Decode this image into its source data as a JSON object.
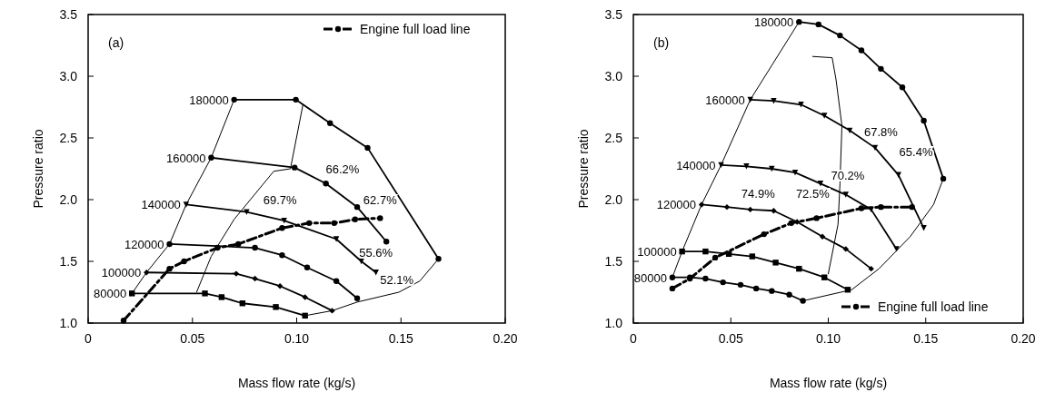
{
  "chart_data": [
    {
      "type": "line",
      "xlabel": "Mass flow rate (kg/s)",
      "ylabel": "Pressure ratio",
      "xlim": [
        0,
        0.2
      ],
      "ylim": [
        1,
        3.5
      ],
      "xticks": [
        0,
        {
          "value": 0.05,
          "label": "0.05"
        },
        {
          "value": 0.1,
          "label": "0.10"
        },
        {
          "value": 0.15,
          "label": "0.15"
        },
        {
          "value": 0.2,
          "label": "0.20"
        }
      ],
      "yticks": [
        {
          "value": 1,
          "label": "1.0"
        },
        {
          "value": 1.5,
          "label": "1.5"
        },
        {
          "value": 2,
          "label": "2.0"
        },
        {
          "value": 2.5,
          "label": "2.5"
        },
        {
          "value": 3,
          "label": "3.0"
        },
        {
          "value": 3.5,
          "label": "3.5"
        }
      ],
      "legend": "top right",
      "grid": false,
      "annotations": [
        "(a)",
        "69.7%",
        "66.2%",
        "62.7%",
        "55.6%",
        "52.1%"
      ],
      "series": [
        {
          "name": "180000",
          "color": "#000000",
          "marker": "circle",
          "x": [
            0.07,
            0.0996,
            0.116,
            0.134,
            0.168
          ],
          "values": [
            2.81,
            2.81,
            2.62,
            2.42,
            1.52
          ]
        },
        {
          "name": "160000",
          "color": "#000000",
          "marker": "circle",
          "x": [
            0.059,
            0.099,
            0.114,
            0.129,
            0.143
          ],
          "values": [
            2.34,
            2.26,
            2.13,
            1.94,
            1.66
          ]
        },
        {
          "name": "140000",
          "color": "#000000",
          "marker": "triangle",
          "x": [
            0.047,
            0.076,
            0.094,
            0.119,
            0.131,
            0.138
          ],
          "values": [
            1.96,
            1.9,
            1.83,
            1.68,
            1.5,
            1.41
          ]
        },
        {
          "name": "120000",
          "color": "#000000",
          "marker": "circle",
          "x": [
            0.039,
            0.08,
            0.093,
            0.105,
            0.119,
            0.129
          ],
          "values": [
            1.64,
            1.61,
            1.55,
            1.45,
            1.34,
            1.2
          ]
        },
        {
          "name": "100000",
          "color": "#000000",
          "marker": "diamond",
          "x": [
            0.028,
            0.071,
            0.08,
            0.092,
            0.104,
            0.117
          ],
          "values": [
            1.41,
            1.4,
            1.36,
            1.3,
            1.21,
            1.1
          ]
        },
        {
          "name": "80000",
          "color": "#000000",
          "marker": "square",
          "x": [
            0.021,
            0.056,
            0.064,
            0.074,
            0.09,
            0.104
          ],
          "values": [
            1.24,
            1.24,
            1.21,
            1.16,
            1.13,
            1.06
          ]
        },
        {
          "color": "#000000",
          "marker": "none",
          "x": [
            0.021,
            0.028,
            0.039,
            0.047,
            0.059,
            0.07
          ],
          "values": [
            1.24,
            1.41,
            1.64,
            1.96,
            2.34,
            2.81
          ]
        },
        {
          "color": "#000000",
          "marker": "none",
          "x": [
            0.104,
            0.117,
            0.129,
            0.149,
            0.159,
            0.168
          ],
          "values": [
            1.06,
            1.1,
            1.17,
            1.25,
            1.34,
            1.52
          ]
        },
        {
          "color": "#000000",
          "marker": "none",
          "x": [
            0.052,
            0.059,
            0.07,
            0.089,
            0.097,
            0.103
          ],
          "values": [
            1.25,
            1.54,
            1.84,
            2.23,
            2.25,
            2.77
          ]
        },
        {
          "name": "Engine full load line",
          "color": "#000000",
          "marker": "circle",
          "line_style": "dashed",
          "x": [
            0.017,
            0.039,
            0.046,
            0.062,
            0.072,
            0.093,
            0.106,
            0.118,
            0.128,
            0.14
          ],
          "values": [
            1.02,
            1.44,
            1.5,
            1.61,
            1.64,
            1.77,
            1.81,
            1.81,
            1.84,
            1.85
          ]
        }
      ]
    },
    {
      "type": "line",
      "xlabel": "Mass flow rate (kg/s)",
      "ylabel": "Pressure ratio",
      "xlim": [
        0,
        0.2
      ],
      "ylim": [
        1,
        3.5
      ],
      "xticks": [
        0,
        {
          "value": 0.05,
          "label": "0.05"
        },
        {
          "value": 0.1,
          "label": "0.10"
        },
        {
          "value": 0.15,
          "label": "0.15"
        },
        {
          "value": 0.2,
          "label": "0.20"
        }
      ],
      "yticks": [
        {
          "value": 1,
          "label": "1.0"
        },
        {
          "value": 1.5,
          "label": "1.5"
        },
        {
          "value": 2,
          "label": "2.0"
        },
        {
          "value": 2.5,
          "label": "2.5"
        },
        {
          "value": 3,
          "label": "3.0"
        },
        {
          "value": 3.5,
          "label": "3.5"
        }
      ],
      "legend": "bottom right",
      "grid": false,
      "annotations": [
        "(b)",
        "74.9%",
        "72.5%",
        "70.2%",
        "67.8%",
        "65.4%"
      ],
      "series": [
        {
          "name": "180000",
          "color": "#000000",
          "marker": "circle",
          "x": [
            0.085,
            0.095,
            0.106,
            0.117,
            0.127,
            0.138,
            0.149,
            0.159
          ],
          "values": [
            3.44,
            3.42,
            3.33,
            3.21,
            3.06,
            2.91,
            2.64,
            2.17
          ]
        },
        {
          "name": "160000",
          "color": "#000000",
          "marker": "triangle",
          "x": [
            0.06,
            0.072,
            0.086,
            0.098,
            0.111,
            0.124,
            0.136,
            0.149
          ],
          "values": [
            2.81,
            2.8,
            2.77,
            2.68,
            2.56,
            2.42,
            2.2,
            1.77
          ]
        },
        {
          "name": "140000",
          "color": "#000000",
          "marker": "triangle",
          "x": [
            0.045,
            0.058,
            0.071,
            0.083,
            0.096,
            0.109,
            0.122,
            0.135
          ],
          "values": [
            2.28,
            2.27,
            2.25,
            2.22,
            2.13,
            2.04,
            1.92,
            1.6
          ]
        },
        {
          "name": "120000",
          "color": "#000000",
          "marker": "diamond",
          "x": [
            0.035,
            0.048,
            0.06,
            0.072,
            0.084,
            0.097,
            0.109,
            0.122
          ],
          "values": [
            1.96,
            1.94,
            1.92,
            1.91,
            1.82,
            1.7,
            1.6,
            1.44
          ]
        },
        {
          "name": "100000",
          "color": "#000000",
          "marker": "square",
          "x": [
            0.025,
            0.037,
            0.049,
            0.061,
            0.073,
            0.085,
            0.098,
            0.11
          ],
          "values": [
            1.58,
            1.58,
            1.56,
            1.54,
            1.49,
            1.44,
            1.37,
            1.27
          ]
        },
        {
          "name": "80000",
          "color": "#000000",
          "marker": "circle",
          "x": [
            0.02,
            0.029,
            0.037,
            0.046,
            0.055,
            0.063,
            0.071,
            0.08,
            0.087
          ],
          "values": [
            1.37,
            1.37,
            1.36,
            1.33,
            1.31,
            1.28,
            1.26,
            1.23,
            1.18
          ]
        },
        {
          "color": "#000000",
          "marker": "none",
          "x": [
            0.02,
            0.025,
            0.035,
            0.045,
            0.06,
            0.085
          ],
          "values": [
            1.37,
            1.58,
            1.96,
            2.28,
            2.81,
            3.44
          ]
        },
        {
          "color": "#000000",
          "marker": "none",
          "x": [
            0.087,
            0.112,
            0.126,
            0.142,
            0.154,
            0.159
          ],
          "values": [
            1.18,
            1.27,
            1.44,
            1.7,
            1.96,
            2.17
          ]
        },
        {
          "color": "#000000",
          "marker": "none",
          "x": [
            0.092,
            0.102,
            0.104,
            0.107,
            0.106,
            0.105,
            0.1
          ],
          "values": [
            3.16,
            3.15,
            2.97,
            2.6,
            2.13,
            1.8,
            1.4
          ]
        },
        {
          "name": "Engine full load line",
          "color": "#000000",
          "marker": "circle",
          "line_style": "dashed",
          "x": [
            0.02,
            0.029,
            0.042,
            0.067,
            0.081,
            0.094,
            0.117,
            0.127,
            0.143
          ],
          "values": [
            1.28,
            1.36,
            1.53,
            1.72,
            1.81,
            1.85,
            1.93,
            1.94,
            1.94
          ]
        }
      ]
    }
  ]
}
